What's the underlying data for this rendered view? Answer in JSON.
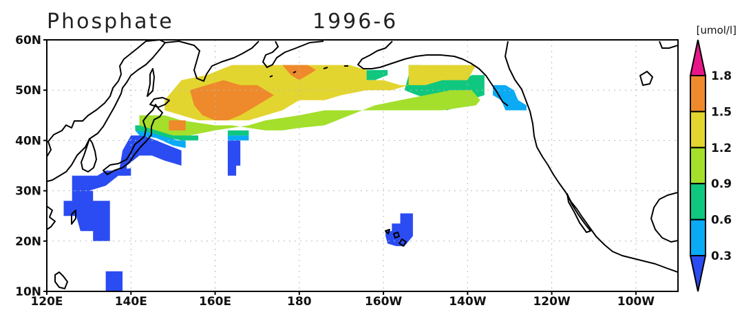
{
  "title": {
    "variable": "Phosphate",
    "date": "1996-6"
  },
  "units": "[umol/l]",
  "map": {
    "lon_range": [
      120,
      270
    ],
    "lat_range": [
      10,
      60
    ],
    "lat_ticks": [
      {
        "value": 10,
        "label": "10N"
      },
      {
        "value": 20,
        "label": "20N"
      },
      {
        "value": 30,
        "label": "30N"
      },
      {
        "value": 40,
        "label": "40N"
      },
      {
        "value": 50,
        "label": "50N"
      },
      {
        "value": 60,
        "label": "60N"
      }
    ],
    "lon_ticks": [
      {
        "value": 120,
        "label": "120E"
      },
      {
        "value": 140,
        "label": "140E"
      },
      {
        "value": 160,
        "label": "160E"
      },
      {
        "value": 180,
        "label": "180"
      },
      {
        "value": 200,
        "label": "160W"
      },
      {
        "value": 220,
        "label": "140W"
      },
      {
        "value": 240,
        "label": "120W"
      },
      {
        "value": 260,
        "label": "100W"
      }
    ],
    "grid": true
  },
  "colorbar": {
    "levels": [
      "0.3",
      "0.6",
      "0.9",
      "1.2",
      "1.5",
      "1.8"
    ],
    "colors": [
      "#2a4cf2",
      "#0aaaf5",
      "#10c77f",
      "#a4df2c",
      "#e3d530",
      "#ee8a2b",
      "#e9168a"
    ],
    "extend": "both"
  },
  "chart_data": {
    "type": "heatmap",
    "variable": "Phosphate",
    "date": "1996-6",
    "units": "umol/l",
    "bins": [
      {
        "range": "<0.3",
        "color": "#2a4cf2"
      },
      {
        "range": "0.3-0.6",
        "color": "#0aaaf5"
      },
      {
        "range": "0.6-0.9",
        "color": "#10c77f"
      },
      {
        "range": "0.9-1.2",
        "color": "#a4df2c"
      },
      {
        "range": "1.2-1.5",
        "color": "#e3d530"
      },
      {
        "range": "1.5-1.8",
        "color": "#ee8a2b"
      },
      {
        "range": ">1.8",
        "color": "#e9168a"
      }
    ],
    "regions": [
      {
        "bin": 0,
        "polys": [
          [
            [
              126,
              33
            ],
            [
              132,
              33
            ],
            [
              134,
              34
            ],
            [
              136,
              34
            ],
            [
              140,
              34.5
            ],
            [
              140,
              33
            ],
            [
              137,
              33
            ],
            [
              134,
              31
            ],
            [
              130,
              30
            ],
            [
              126,
              30
            ]
          ],
          [
            [
              126,
              30
            ],
            [
              131,
              30
            ],
            [
              131,
              28
            ],
            [
              135,
              28
            ],
            [
              135,
              20
            ],
            [
              134,
              20
            ],
            [
              134,
              14
            ],
            [
              138,
              14
            ],
            [
              138,
              10
            ],
            [
              134,
              10
            ],
            [
              134,
              20
            ],
            [
              131,
              20
            ],
            [
              131,
              22
            ],
            [
              128,
              22
            ],
            [
              127,
              25
            ],
            [
              124,
              25
            ],
            [
              124,
              28
            ],
            [
              126,
              28
            ]
          ],
          [
            [
              137,
              33
            ],
            [
              139,
              33
            ],
            [
              139,
              35
            ],
            [
              142,
              37
            ],
            [
              145,
              37
            ],
            [
              148,
              36
            ],
            [
              152,
              35
            ],
            [
              152,
              38
            ],
            [
              149,
              39
            ],
            [
              146,
              40
            ],
            [
              143,
              41
            ],
            [
              140,
              41
            ],
            [
              138,
              38
            ]
          ],
          [
            [
              163,
              40
            ],
            [
              166,
              40
            ],
            [
              166,
              35
            ],
            [
              165,
              35
            ],
            [
              165,
              33
            ],
            [
              163,
              33
            ],
            [
              163,
              36
            ]
          ],
          [
            [
              200.5,
              22
            ],
            [
              202,
              22
            ],
            [
              202,
              23.5
            ],
            [
              204,
              23.5
            ],
            [
              204,
              25.5
            ],
            [
              207,
              25.5
            ],
            [
              207,
              21
            ],
            [
              205,
              19
            ],
            [
              203,
              19
            ],
            [
              201,
              19.5
            ],
            [
              200.5,
              21
            ]
          ]
        ]
      },
      {
        "bin": 1,
        "polys": [
          [
            [
              141,
              42
            ],
            [
              145,
              42
            ],
            [
              148,
              41
            ],
            [
              151,
              40
            ],
            [
              153,
              40
            ],
            [
              153,
              38.5
            ],
            [
              150,
              39
            ],
            [
              146,
              40.5
            ],
            [
              142,
              41
            ]
          ],
          [
            [
              163,
              41
            ],
            [
              168,
              41
            ],
            [
              168,
              40
            ],
            [
              163,
              40
            ]
          ],
          [
            [
              226,
              51
            ],
            [
              229,
              51
            ],
            [
              231,
              50
            ],
            [
              232,
              48
            ],
            [
              234,
              47
            ],
            [
              234,
              46
            ],
            [
              229,
              46
            ],
            [
              228,
              48
            ],
            [
              226,
              49
            ]
          ]
        ]
      },
      {
        "bin": 2,
        "polys": [
          [
            [
              141,
              43
            ],
            [
              146,
              43
            ],
            [
              150,
              42
            ],
            [
              153,
              41
            ],
            [
              156,
              41
            ],
            [
              156,
              40
            ],
            [
              152,
              40
            ],
            [
              149,
              40.5
            ],
            [
              145,
              41.5
            ],
            [
              141,
              42
            ]
          ],
          [
            [
              163,
              42
            ],
            [
              168,
              42
            ],
            [
              168,
              41
            ],
            [
              163,
              41
            ]
          ],
          [
            [
              206,
              55
            ],
            [
              209,
              55
            ],
            [
              212,
              53
            ],
            [
              216,
              53
            ],
            [
              219,
              52
            ],
            [
              221,
              53
            ],
            [
              224,
              53
            ],
            [
              224,
              49
            ],
            [
              222,
              48.5
            ],
            [
              219,
              47
            ],
            [
              215,
              46
            ],
            [
              212,
              48
            ],
            [
              208,
              49
            ],
            [
              205,
              50
            ],
            [
              206,
              53
            ]
          ],
          [
            [
              195,
              54
            ],
            [
              201,
              54
            ],
            [
              201,
              53
            ],
            [
              198,
              52
            ],
            [
              195,
              52
            ]
          ]
        ]
      },
      {
        "bin": 3,
        "polys": [
          [
            [
              142,
              45
            ],
            [
              148,
              45
            ],
            [
              152,
              44
            ],
            [
              156,
              43.5
            ],
            [
              160,
              43
            ],
            [
              164,
              43
            ],
            [
              168,
              42.5
            ],
            [
              172,
              42
            ],
            [
              176,
              42
            ],
            [
              180,
              42.5
            ],
            [
              186,
              43
            ],
            [
              192,
              45
            ],
            [
              198,
              47
            ],
            [
              204,
              48
            ],
            [
              210,
              49
            ],
            [
              216,
              50
            ],
            [
              221,
              50
            ],
            [
              223,
              48
            ],
            [
              222,
              47
            ],
            [
              214,
              46
            ],
            [
              206,
              46
            ],
            [
              196,
              46
            ],
            [
              186,
              46
            ],
            [
              180,
              45
            ],
            [
              172,
              44
            ],
            [
              168,
              43
            ],
            [
              160,
              42
            ],
            [
              154,
              41
            ],
            [
              150,
              41
            ],
            [
              146,
              42
            ],
            [
              142,
              43
            ]
          ]
        ]
      },
      {
        "bin": 4,
        "polys": [
          [
            [
              148,
              48
            ],
            [
              150,
              50
            ],
            [
              152,
              52
            ],
            [
              158,
              53
            ],
            [
              164,
              55
            ],
            [
              170,
              55
            ],
            [
              178,
              55
            ],
            [
              186,
              55
            ],
            [
              192,
              55
            ],
            [
              196,
              54
            ],
            [
              196,
              52
            ],
            [
              200,
              52
            ],
            [
              204,
              51
            ],
            [
              210,
              51
            ],
            [
              214,
              52
            ],
            [
              220,
              52
            ],
            [
              222,
              55
            ],
            [
              210,
              55
            ],
            [
              206,
              55
            ],
            [
              206,
              51
            ],
            [
              202,
              50
            ],
            [
              196,
              50
            ],
            [
              190,
              49
            ],
            [
              186,
              48
            ],
            [
              180,
              48
            ],
            [
              176,
              46
            ],
            [
              172,
              45
            ],
            [
              168,
              44
            ],
            [
              164,
              44
            ],
            [
              160,
              44
            ],
            [
              156,
              44
            ],
            [
              152,
              45
            ],
            [
              148,
              46
            ]
          ]
        ]
      },
      {
        "bin": 5,
        "polys": [
          [
            [
              154,
              50
            ],
            [
              158,
              51
            ],
            [
              162,
              52
            ],
            [
              166,
              51
            ],
            [
              170,
              51
            ],
            [
              172,
              50
            ],
            [
              174,
              49
            ],
            [
              172,
              48
            ],
            [
              170,
              47
            ],
            [
              168,
              46
            ],
            [
              166,
              45
            ],
            [
              163,
              44
            ],
            [
              160,
              44
            ],
            [
              157,
              45
            ],
            [
              155,
              47
            ]
          ],
          [
            [
              176,
              55
            ],
            [
              182,
              55
            ],
            [
              184,
              54
            ],
            [
              182,
              53
            ],
            [
              180,
              52
            ],
            [
              178,
              53
            ]
          ],
          [
            [
              149,
              44
            ],
            [
              153,
              44
            ],
            [
              153,
              42
            ],
            [
              149,
              42
            ]
          ]
        ]
      }
    ]
  }
}
